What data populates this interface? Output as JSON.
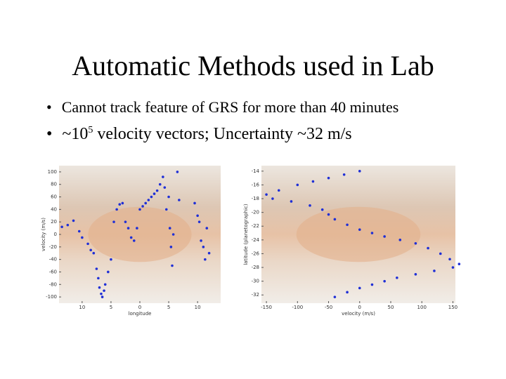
{
  "slide": {
    "title": "Automatic Methods used in Lab",
    "bullets": [
      {
        "text": "Cannot track feature of GRS for more than 40 minutes"
      },
      {
        "text": "~10",
        "sup": "5",
        "rest": " velocity vectors; Uncertainty ~32 m/s"
      }
    ]
  },
  "chart_data": [
    {
      "type": "scatter",
      "xlabel": "longitude",
      "ylabel": "velocity (m/s)",
      "color": "#1f2fd6",
      "xlim": [
        14,
        -14
      ],
      "xticks": [
        10,
        5,
        0,
        {
          "value": -5,
          "label": "5"
        },
        {
          "value": -10,
          "label": "10"
        }
      ],
      "ylim": [
        -110,
        110
      ],
      "yticks": [
        -100,
        -80,
        -60,
        -40,
        -20,
        0,
        20,
        40,
        60,
        80,
        100
      ],
      "x": [
        13.5,
        12.5,
        11.5,
        10.5,
        10,
        9,
        8.5,
        8,
        7.5,
        7.2,
        7,
        6.7,
        6.5,
        6.2,
        6,
        5.5,
        5,
        4.5,
        4,
        3.5,
        3,
        2.5,
        2,
        1.5,
        1,
        0.5,
        0,
        -0.5,
        -1,
        -1.5,
        -2,
        -2.5,
        -3,
        -3.5,
        -4,
        -4.3,
        -4.6,
        -5,
        -5.2,
        -5.4,
        -5.6,
        -5.8,
        -6.5,
        -6.8,
        -9.5,
        -10,
        -10.3,
        -10.6,
        -11,
        -11.3,
        -11.6,
        -12
      ],
      "values": [
        12,
        15,
        22,
        5,
        -5,
        -15,
        -25,
        -30,
        -55,
        -70,
        -85,
        -95,
        -100,
        -90,
        -80,
        -60,
        -40,
        20,
        40,
        48,
        50,
        20,
        10,
        -5,
        -10,
        10,
        40,
        45,
        50,
        55,
        60,
        65,
        70,
        80,
        92,
        75,
        40,
        60,
        10,
        -20,
        -50,
        0,
        100,
        55,
        50,
        30,
        20,
        -10,
        -20,
        -40,
        10,
        -30
      ]
    },
    {
      "type": "scatter",
      "xlabel": "velocity (m/s)",
      "ylabel": "latitude (planetographic)",
      "color": "#1f2fd6",
      "xlim": [
        -158,
        154
      ],
      "xticks": [
        -150,
        -100,
        -50,
        0,
        50,
        100,
        150
      ],
      "ylim": [
        -33.2,
        -13.2
      ],
      "yticks": [
        -32,
        -30,
        -28,
        -26,
        -24,
        -22,
        -20,
        -18,
        -16,
        -14
      ],
      "x": [
        0,
        -25,
        -50,
        -75,
        -100,
        -130,
        -150,
        -140,
        -110,
        -80,
        -60,
        -50,
        -40,
        -20,
        0,
        20,
        40,
        65,
        90,
        110,
        130,
        145,
        160,
        150,
        120,
        90,
        60,
        40,
        20,
        0,
        -20,
        -40
      ],
      "values": [
        -14,
        -14.5,
        -15,
        -15.5,
        -16,
        -16.8,
        -17.4,
        -18,
        -18.4,
        -19,
        -19.6,
        -20.3,
        -21,
        -21.8,
        -22.5,
        -23,
        -23.5,
        -24,
        -24.5,
        -25.2,
        -26,
        -26.8,
        -27.5,
        -28,
        -28.5,
        -29,
        -29.5,
        -30,
        -30.5,
        -31,
        -31.6,
        -32.3
      ]
    }
  ]
}
